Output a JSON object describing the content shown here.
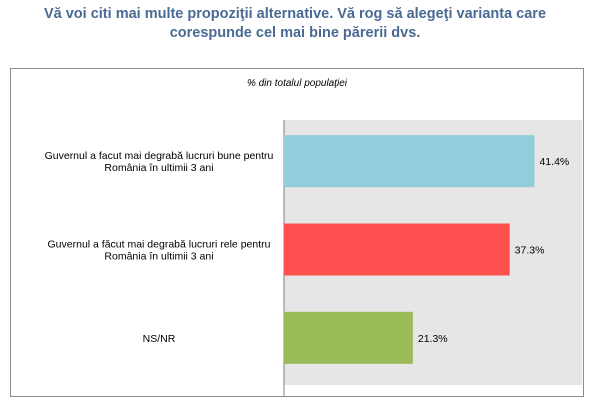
{
  "page": {
    "title_line1": "Vă voi citi mai multe propoziţii alternative. Vă rog să alegeţi varianta care",
    "title_line2": "corespunde cel mai bine părerii dvs."
  },
  "chart_data": {
    "type": "bar",
    "orientation": "horizontal",
    "subtitle": "% din totalul populaţiei",
    "categories": [
      [
        "Guvernul a facut mai degrabă lucruri bune pentru",
        "România în ultimii 3 ani"
      ],
      [
        "Guvernul a făcut mai degrabă lucruri rele pentru",
        "România în ultimii 3 ani"
      ],
      [
        "NS/NR"
      ]
    ],
    "values": [
      41.4,
      37.3,
      21.3
    ],
    "value_labels": [
      "41.4%",
      "37.3%",
      "21.3%"
    ],
    "colors": [
      "#92cddc",
      "#ff5050",
      "#9bbb59"
    ],
    "plot_background": "#e6e6e6",
    "xlim": [
      0,
      48
    ],
    "grid": false,
    "legend": "none"
  }
}
